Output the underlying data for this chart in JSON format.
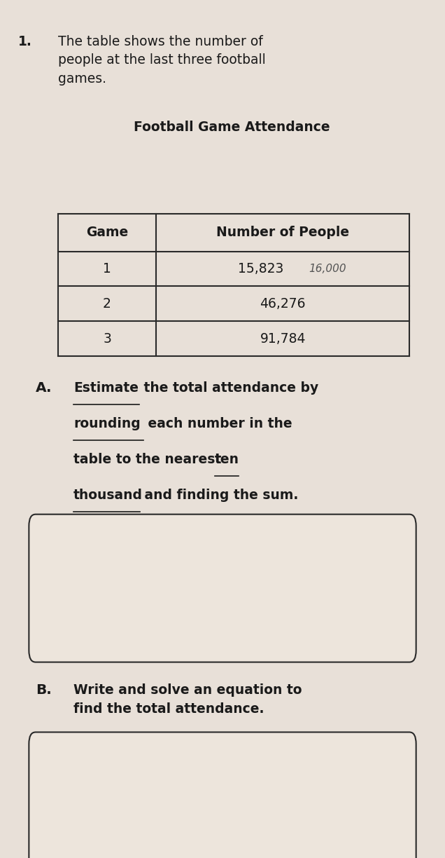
{
  "page_background": "#e8e0d8",
  "problem_number": "1.",
  "intro_text": "The table shows the number of\npeople at the last three football\ngames.",
  "table_title": "Football Game Attendance",
  "table_headers": [
    "Game",
    "Number of People"
  ],
  "table_rows": [
    [
      "1",
      "15,823",
      "16,000"
    ],
    [
      "2",
      "46,276",
      ""
    ],
    [
      "3",
      "91,784",
      ""
    ]
  ],
  "part_a_label": "A.",
  "part_b_label": "B.",
  "part_b_text": "Write and solve an equation to\nfind the total attendance.",
  "text_color": "#1a1a1a",
  "table_line_color": "#2a2a2a",
  "box_line_color": "#2a2a2a",
  "box_face_color": "#ede5dc",
  "handwritten_color": "#555555",
  "underline_words": [
    "Estimate",
    "rounding",
    "ten\nthousand"
  ],
  "part_a_lines": [
    [
      {
        "text": "Estimate",
        "ul": true
      },
      {
        "text": " the total attendance by",
        "ul": false
      }
    ],
    [
      {
        "text": "rounding",
        "ul": true
      },
      {
        "text": " each number in the",
        "ul": false
      }
    ],
    [
      {
        "text": "table to the nearest ",
        "ul": false
      },
      {
        "text": "ten",
        "ul": true
      }
    ],
    [
      {
        "text": "thousand",
        "ul": true
      },
      {
        "text": " and finding the sum.",
        "ul": false
      }
    ]
  ]
}
